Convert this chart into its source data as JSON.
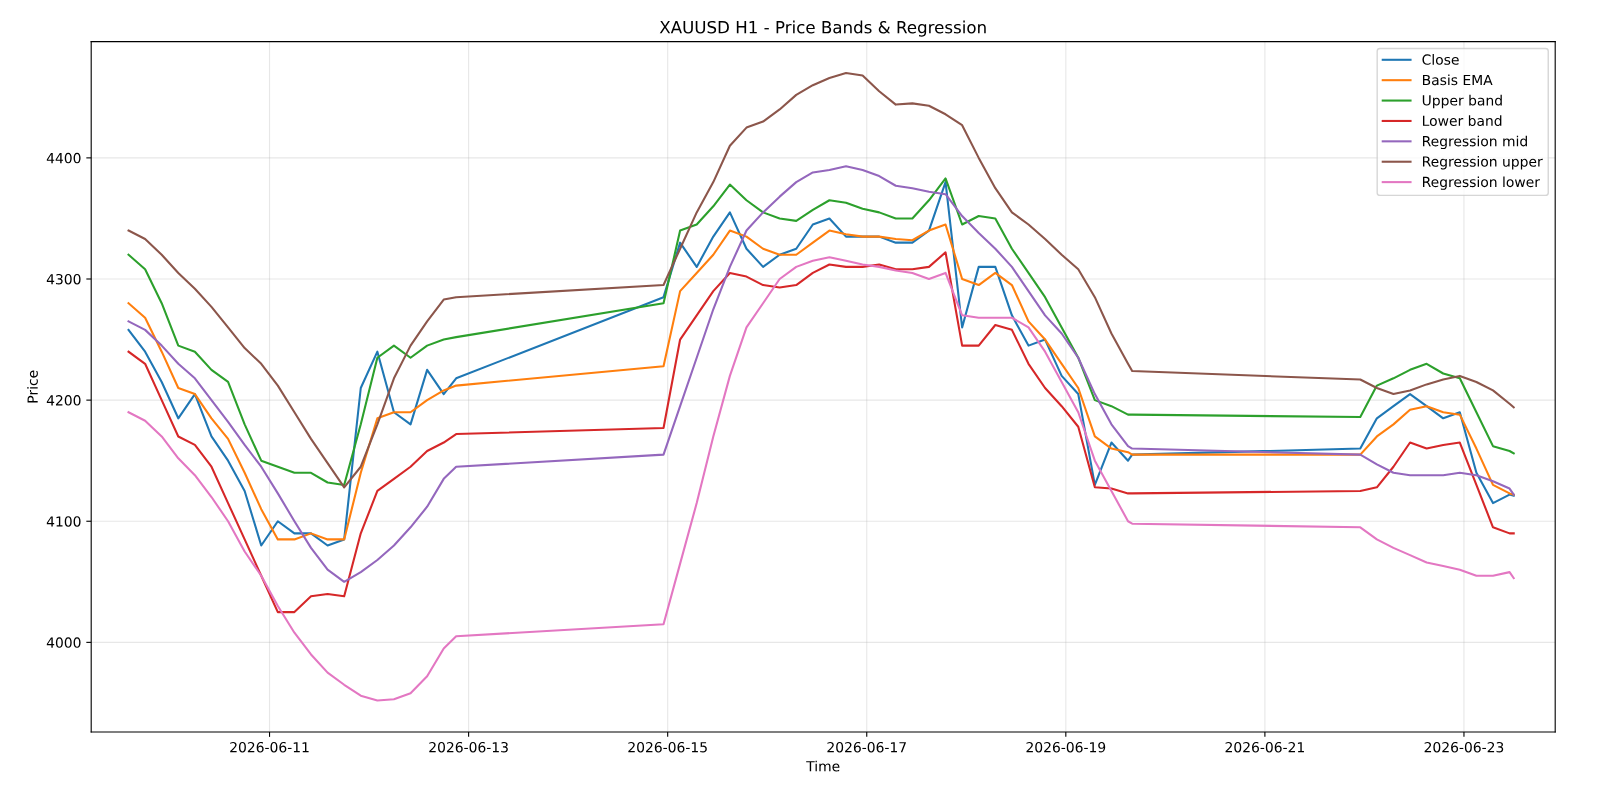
{
  "chart_data": {
    "type": "line",
    "title": "XAUUSD H1 - Price Bands & Regression",
    "xlabel": "Time",
    "ylabel": "Price",
    "x": [
      "2026-06-09T14:00",
      "2026-06-09T18:00",
      "2026-06-09T22:00",
      "2026-06-10T02:00",
      "2026-06-10T06:00",
      "2026-06-10T10:00",
      "2026-06-10T14:00",
      "2026-06-10T18:00",
      "2026-06-10T22:00",
      "2026-06-11T02:00",
      "2026-06-11T06:00",
      "2026-06-11T10:00",
      "2026-06-11T14:00",
      "2026-06-11T18:00",
      "2026-06-11T22:00",
      "2026-06-12T02:00",
      "2026-06-12T06:00",
      "2026-06-12T10:00",
      "2026-06-12T14:00",
      "2026-06-12T18:00",
      "2026-06-12T21:00",
      "2026-06-14T23:00",
      "2026-06-15T03:00",
      "2026-06-15T07:00",
      "2026-06-15T11:00",
      "2026-06-15T15:00",
      "2026-06-15T19:00",
      "2026-06-15T23:00",
      "2026-06-16T03:00",
      "2026-06-16T07:00",
      "2026-06-16T11:00",
      "2026-06-16T15:00",
      "2026-06-16T19:00",
      "2026-06-16T23:00",
      "2026-06-17T03:00",
      "2026-06-17T07:00",
      "2026-06-17T11:00",
      "2026-06-17T15:00",
      "2026-06-17T19:00",
      "2026-06-17T23:00",
      "2026-06-18T03:00",
      "2026-06-18T07:00",
      "2026-06-18T11:00",
      "2026-06-18T15:00",
      "2026-06-18T19:00",
      "2026-06-18T23:00",
      "2026-06-19T03:00",
      "2026-06-19T07:00",
      "2026-06-19T11:00",
      "2026-06-19T15:00",
      "2026-06-19T16:00",
      "2026-06-21T23:00",
      "2026-06-22T03:00",
      "2026-06-22T07:00",
      "2026-06-22T11:00",
      "2026-06-22T15:00",
      "2026-06-22T19:00",
      "2026-06-22T23:00",
      "2026-06-23T03:00",
      "2026-06-23T07:00",
      "2026-06-23T11:00",
      "2026-06-23T12:00"
    ],
    "series": [
      {
        "name": "Close",
        "color": "#1f77b4",
        "values": [
          4258,
          4240,
          4215,
          4185,
          4205,
          4170,
          4150,
          4125,
          4080,
          4100,
          4090,
          4090,
          4080,
          4085,
          4210,
          4240,
          4190,
          4180,
          4225,
          4205,
          4218,
          4285,
          4330,
          4310,
          4335,
          4355,
          4325,
          4310,
          4320,
          4325,
          4345,
          4350,
          4335,
          4335,
          4335,
          4330,
          4330,
          4340,
          4380,
          4260,
          4310,
          4310,
          4270,
          4245,
          4250,
          4220,
          4205,
          4130,
          4165,
          4150,
          4155,
          4160,
          4185,
          4195,
          4205,
          4195,
          4185,
          4190,
          4140,
          4115,
          4122,
          4121
        ]
      },
      {
        "name": "Basis EMA",
        "color": "#ff7f0e",
        "values": [
          4280,
          4268,
          4240,
          4210,
          4205,
          4185,
          4168,
          4140,
          4110,
          4085,
          4085,
          4090,
          4085,
          4085,
          4140,
          4185,
          4190,
          4190,
          4200,
          4208,
          4212,
          4228,
          4290,
          4305,
          4320,
          4340,
          4335,
          4325,
          4320,
          4320,
          4330,
          4340,
          4337,
          4335,
          4335,
          4333,
          4332,
          4340,
          4345,
          4300,
          4295,
          4305,
          4295,
          4265,
          4250,
          4230,
          4210,
          4170,
          4160,
          4157,
          4155,
          4155,
          4170,
          4180,
          4192,
          4195,
          4190,
          4188,
          4160,
          4130,
          4123,
          4122
        ]
      },
      {
        "name": "Upper band",
        "color": "#2ca02c",
        "values": [
          4320,
          4308,
          4280,
          4245,
          4240,
          4225,
          4215,
          4180,
          4150,
          4145,
          4140,
          4140,
          4132,
          4130,
          4180,
          4235,
          4245,
          4235,
          4245,
          4250,
          4252,
          4280,
          4340,
          4345,
          4360,
          4378,
          4365,
          4355,
          4350,
          4348,
          4357,
          4365,
          4363,
          4358,
          4355,
          4350,
          4350,
          4365,
          4383,
          4345,
          4352,
          4350,
          4325,
          4305,
          4285,
          4260,
          4235,
          4200,
          4195,
          4188,
          4188,
          4186,
          4212,
          4218,
          4225,
          4230,
          4222,
          4218,
          4190,
          4162,
          4158,
          4156
        ]
      },
      {
        "name": "Lower band",
        "color": "#d62728",
        "values": [
          4240,
          4230,
          4200,
          4170,
          4163,
          4145,
          4115,
          4085,
          4055,
          4025,
          4025,
          4038,
          4040,
          4038,
          4090,
          4125,
          4135,
          4145,
          4158,
          4165,
          4172,
          4177,
          4250,
          4270,
          4290,
          4305,
          4302,
          4295,
          4293,
          4295,
          4305,
          4312,
          4310,
          4310,
          4312,
          4308,
          4308,
          4310,
          4322,
          4245,
          4245,
          4262,
          4258,
          4230,
          4210,
          4195,
          4178,
          4128,
          4127,
          4123,
          4123,
          4125,
          4128,
          4145,
          4165,
          4160,
          4163,
          4165,
          4130,
          4095,
          4090,
          4090
        ]
      },
      {
        "name": "Regression mid",
        "color": "#9467bd",
        "values": [
          4265,
          4258,
          4245,
          4230,
          4218,
          4200,
          4182,
          4163,
          4145,
          4123,
          4100,
          4078,
          4060,
          4050,
          4058,
          4068,
          4080,
          4095,
          4112,
          4135,
          4145,
          4155,
          4195,
          4235,
          4275,
          4310,
          4340,
          4355,
          4368,
          4380,
          4388,
          4390,
          4393,
          4390,
          4385,
          4377,
          4375,
          4372,
          4370,
          4352,
          4338,
          4325,
          4310,
          4290,
          4270,
          4255,
          4235,
          4205,
          4180,
          4162,
          4160,
          4155,
          4147,
          4140,
          4138,
          4138,
          4138,
          4140,
          4138,
          4133,
          4127,
          4122
        ]
      },
      {
        "name": "Regression upper",
        "color": "#8c564b",
        "values": [
          4340,
          4333,
          4320,
          4305,
          4292,
          4277,
          4260,
          4243,
          4230,
          4212,
          4190,
          4168,
          4148,
          4128,
          4145,
          4180,
          4218,
          4245,
          4265,
          4283,
          4285,
          4295,
          4325,
          4355,
          4380,
          4410,
          4425,
          4430,
          4440,
          4452,
          4460,
          4466,
          4470,
          4468,
          4455,
          4444,
          4445,
          4443,
          4436,
          4427,
          4400,
          4375,
          4355,
          4345,
          4333,
          4320,
          4308,
          4285,
          4255,
          4230,
          4224,
          4217,
          4210,
          4205,
          4208,
          4213,
          4217,
          4220,
          4215,
          4208,
          4197,
          4194
        ]
      },
      {
        "name": "Regression lower",
        "color": "#e377c2",
        "values": [
          4190,
          4183,
          4170,
          4152,
          4138,
          4120,
          4100,
          4075,
          4055,
          4030,
          4008,
          3990,
          3975,
          3965,
          3956,
          3952,
          3953,
          3958,
          3972,
          3995,
          4005,
          4015,
          4065,
          4115,
          4170,
          4220,
          4260,
          4280,
          4300,
          4310,
          4315,
          4318,
          4315,
          4312,
          4310,
          4307,
          4305,
          4300,
          4305,
          4270,
          4268,
          4268,
          4268,
          4260,
          4240,
          4215,
          4190,
          4150,
          4125,
          4100,
          4098,
          4095,
          4085,
          4078,
          4072,
          4066,
          4063,
          4060,
          4055,
          4055,
          4058,
          4053
        ]
      }
    ],
    "xlim": [
      "2026-06-09T05:00",
      "2026-06-23T22:00"
    ],
    "xticks": [
      "2026-06-11",
      "2026-06-13",
      "2026-06-15",
      "2026-06-17",
      "2026-06-19",
      "2026-06-21",
      "2026-06-23"
    ],
    "ylim": [
      3926,
      4496
    ],
    "yticks": [
      4000,
      4100,
      4200,
      4300,
      4400
    ],
    "grid": true,
    "legend": "top right",
    "line_style": "solid",
    "marker": "none"
  }
}
